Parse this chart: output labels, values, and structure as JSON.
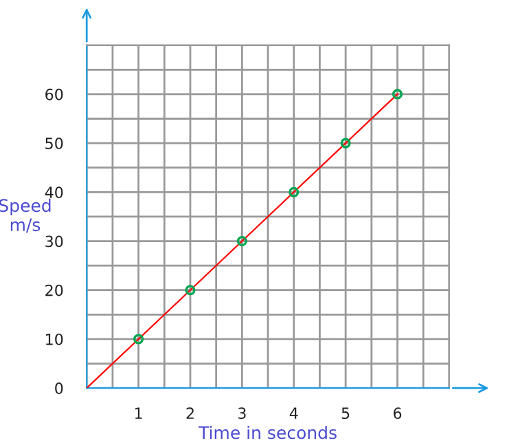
{
  "chart_data": {
    "type": "line",
    "xlabel": "Time in seconds",
    "ylabel": "Speed\nm/s",
    "xlim": [
      0,
      7
    ],
    "ylim": [
      0,
      70
    ],
    "xticks": [
      1,
      2,
      3,
      4,
      5,
      6
    ],
    "yticks": [
      0,
      10,
      20,
      30,
      40,
      50,
      60
    ],
    "grid": true,
    "series": [
      {
        "color": "#ff0000",
        "x": [
          0,
          1,
          2,
          3,
          4,
          5,
          6
        ],
        "values": [
          0,
          10,
          20,
          30,
          40,
          50,
          60
        ],
        "marker": "none"
      },
      {
        "type": "scatter",
        "color": "#00a651",
        "x": [
          1,
          2,
          3,
          4,
          5,
          6
        ],
        "values": [
          10,
          20,
          30,
          40,
          50,
          60
        ],
        "marker": "circle"
      }
    ]
  }
}
